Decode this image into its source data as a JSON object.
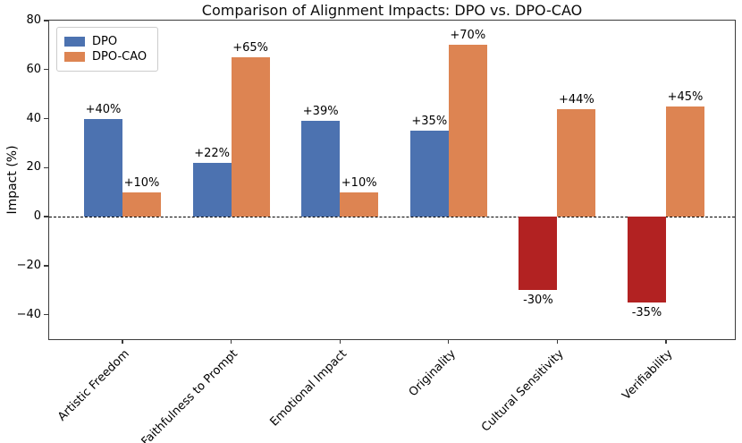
{
  "chart_data": {
    "type": "bar",
    "title": "Comparison of Alignment Impacts: DPO vs. DPO-CAO",
    "xlabel": "",
    "ylabel": "Impact (%)",
    "categories": [
      "Artistic Freedom",
      "Faithfulness to Prompt",
      "Emotional Impact",
      "Originality",
      "Cultural Sensitivity",
      "Verifiability"
    ],
    "series": [
      {
        "name": "DPO",
        "values": [
          40,
          22,
          39,
          35,
          -30,
          -35
        ],
        "labels": [
          "+40%",
          "+22%",
          "+39%",
          "+35%",
          "-30%",
          "-35%"
        ]
      },
      {
        "name": "DPO-CAO",
        "values": [
          10,
          65,
          10,
          70,
          44,
          45
        ],
        "labels": [
          "+10%",
          "+65%",
          "+10%",
          "+70%",
          "+44%",
          "+45%"
        ]
      }
    ],
    "ylim": [
      -50,
      80
    ],
    "ytick_values": [
      80,
      60,
      40,
      20,
      0,
      -20,
      -40
    ],
    "ytick_labels": [
      "80",
      "60",
      "40",
      "20",
      "0",
      "−20",
      "−40"
    ],
    "colors": {
      "dpo_positive": "#4C72B0",
      "dpo_negative": "#B22222",
      "dpo_cao": "#DD8452"
    },
    "zero_line": {
      "value": 0,
      "style": "dashed",
      "color": "#000000"
    },
    "legend": {
      "position": "upper-left",
      "entries": [
        "DPO",
        "DPO-CAO"
      ]
    },
    "grid": false
  }
}
